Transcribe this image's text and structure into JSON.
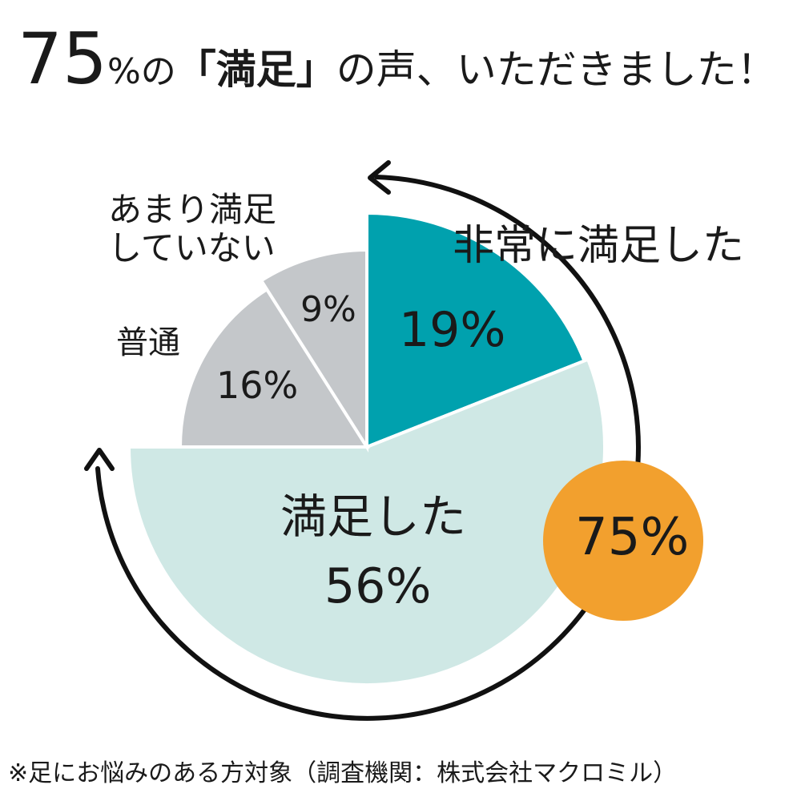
{
  "chart_data": {
    "type": "pie",
    "title_parts": [
      "75",
      "%の",
      "「満足」",
      "の声、いただきました！"
    ],
    "categories": [
      "非常に満足した",
      "満足した",
      "普通",
      "あまり満足していない"
    ],
    "values": [
      19,
      56,
      16,
      9
    ],
    "value_labels": [
      "19%",
      "56%",
      "16%",
      "9%"
    ],
    "colors": [
      "#00a1ae",
      "#cfe8e5",
      "#c4c7ca",
      "#c4c7ca"
    ],
    "annotation": "75%",
    "annotation_color": "#f2a02e",
    "footnote": "※足にお悩みのある方対象（調査機関：株式会社マクロミル）"
  }
}
